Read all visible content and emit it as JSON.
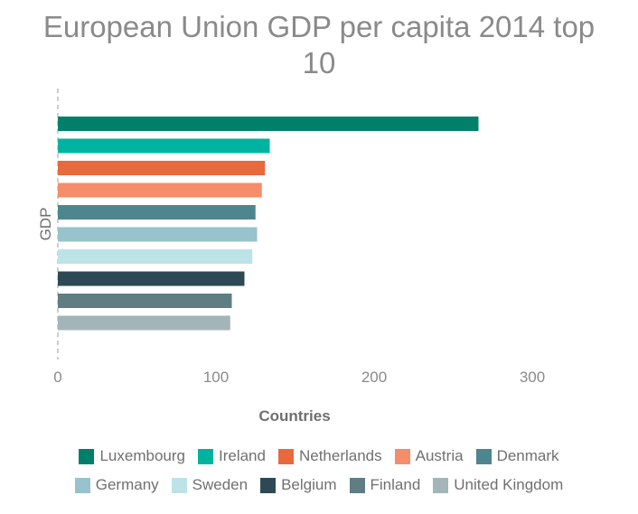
{
  "chart_data": {
    "type": "bar",
    "orientation": "horizontal",
    "title": "European Union GDP per capita 2014 top 10",
    "title_lines": [
      "European Union GDP per capita 2014 top",
      "10"
    ],
    "ylabel": "GDP",
    "xlabel": "Countries",
    "xlim": [
      0,
      360
    ],
    "xticks": [
      0,
      100,
      200,
      300
    ],
    "grid": false,
    "legend_position": "bottom",
    "series": [
      {
        "name": "Luxembourg",
        "value": 266,
        "color": "#00806a"
      },
      {
        "name": "Ireland",
        "value": 134,
        "color": "#00b3a1"
      },
      {
        "name": "Netherlands",
        "value": 131,
        "color": "#e8693c"
      },
      {
        "name": "Austria",
        "value": 129,
        "color": "#f58d6b"
      },
      {
        "name": "Denmark",
        "value": 125,
        "color": "#4d868e"
      },
      {
        "name": "Germany",
        "value": 126,
        "color": "#98c2cc"
      },
      {
        "name": "Sweden",
        "value": 123,
        "color": "#bde3e6"
      },
      {
        "name": "Belgium",
        "value": 118,
        "color": "#2d4a54"
      },
      {
        "name": "Finland",
        "value": 110,
        "color": "#5f7d82"
      },
      {
        "name": "United Kingdom",
        "value": 109,
        "color": "#a3b5b8"
      }
    ]
  }
}
